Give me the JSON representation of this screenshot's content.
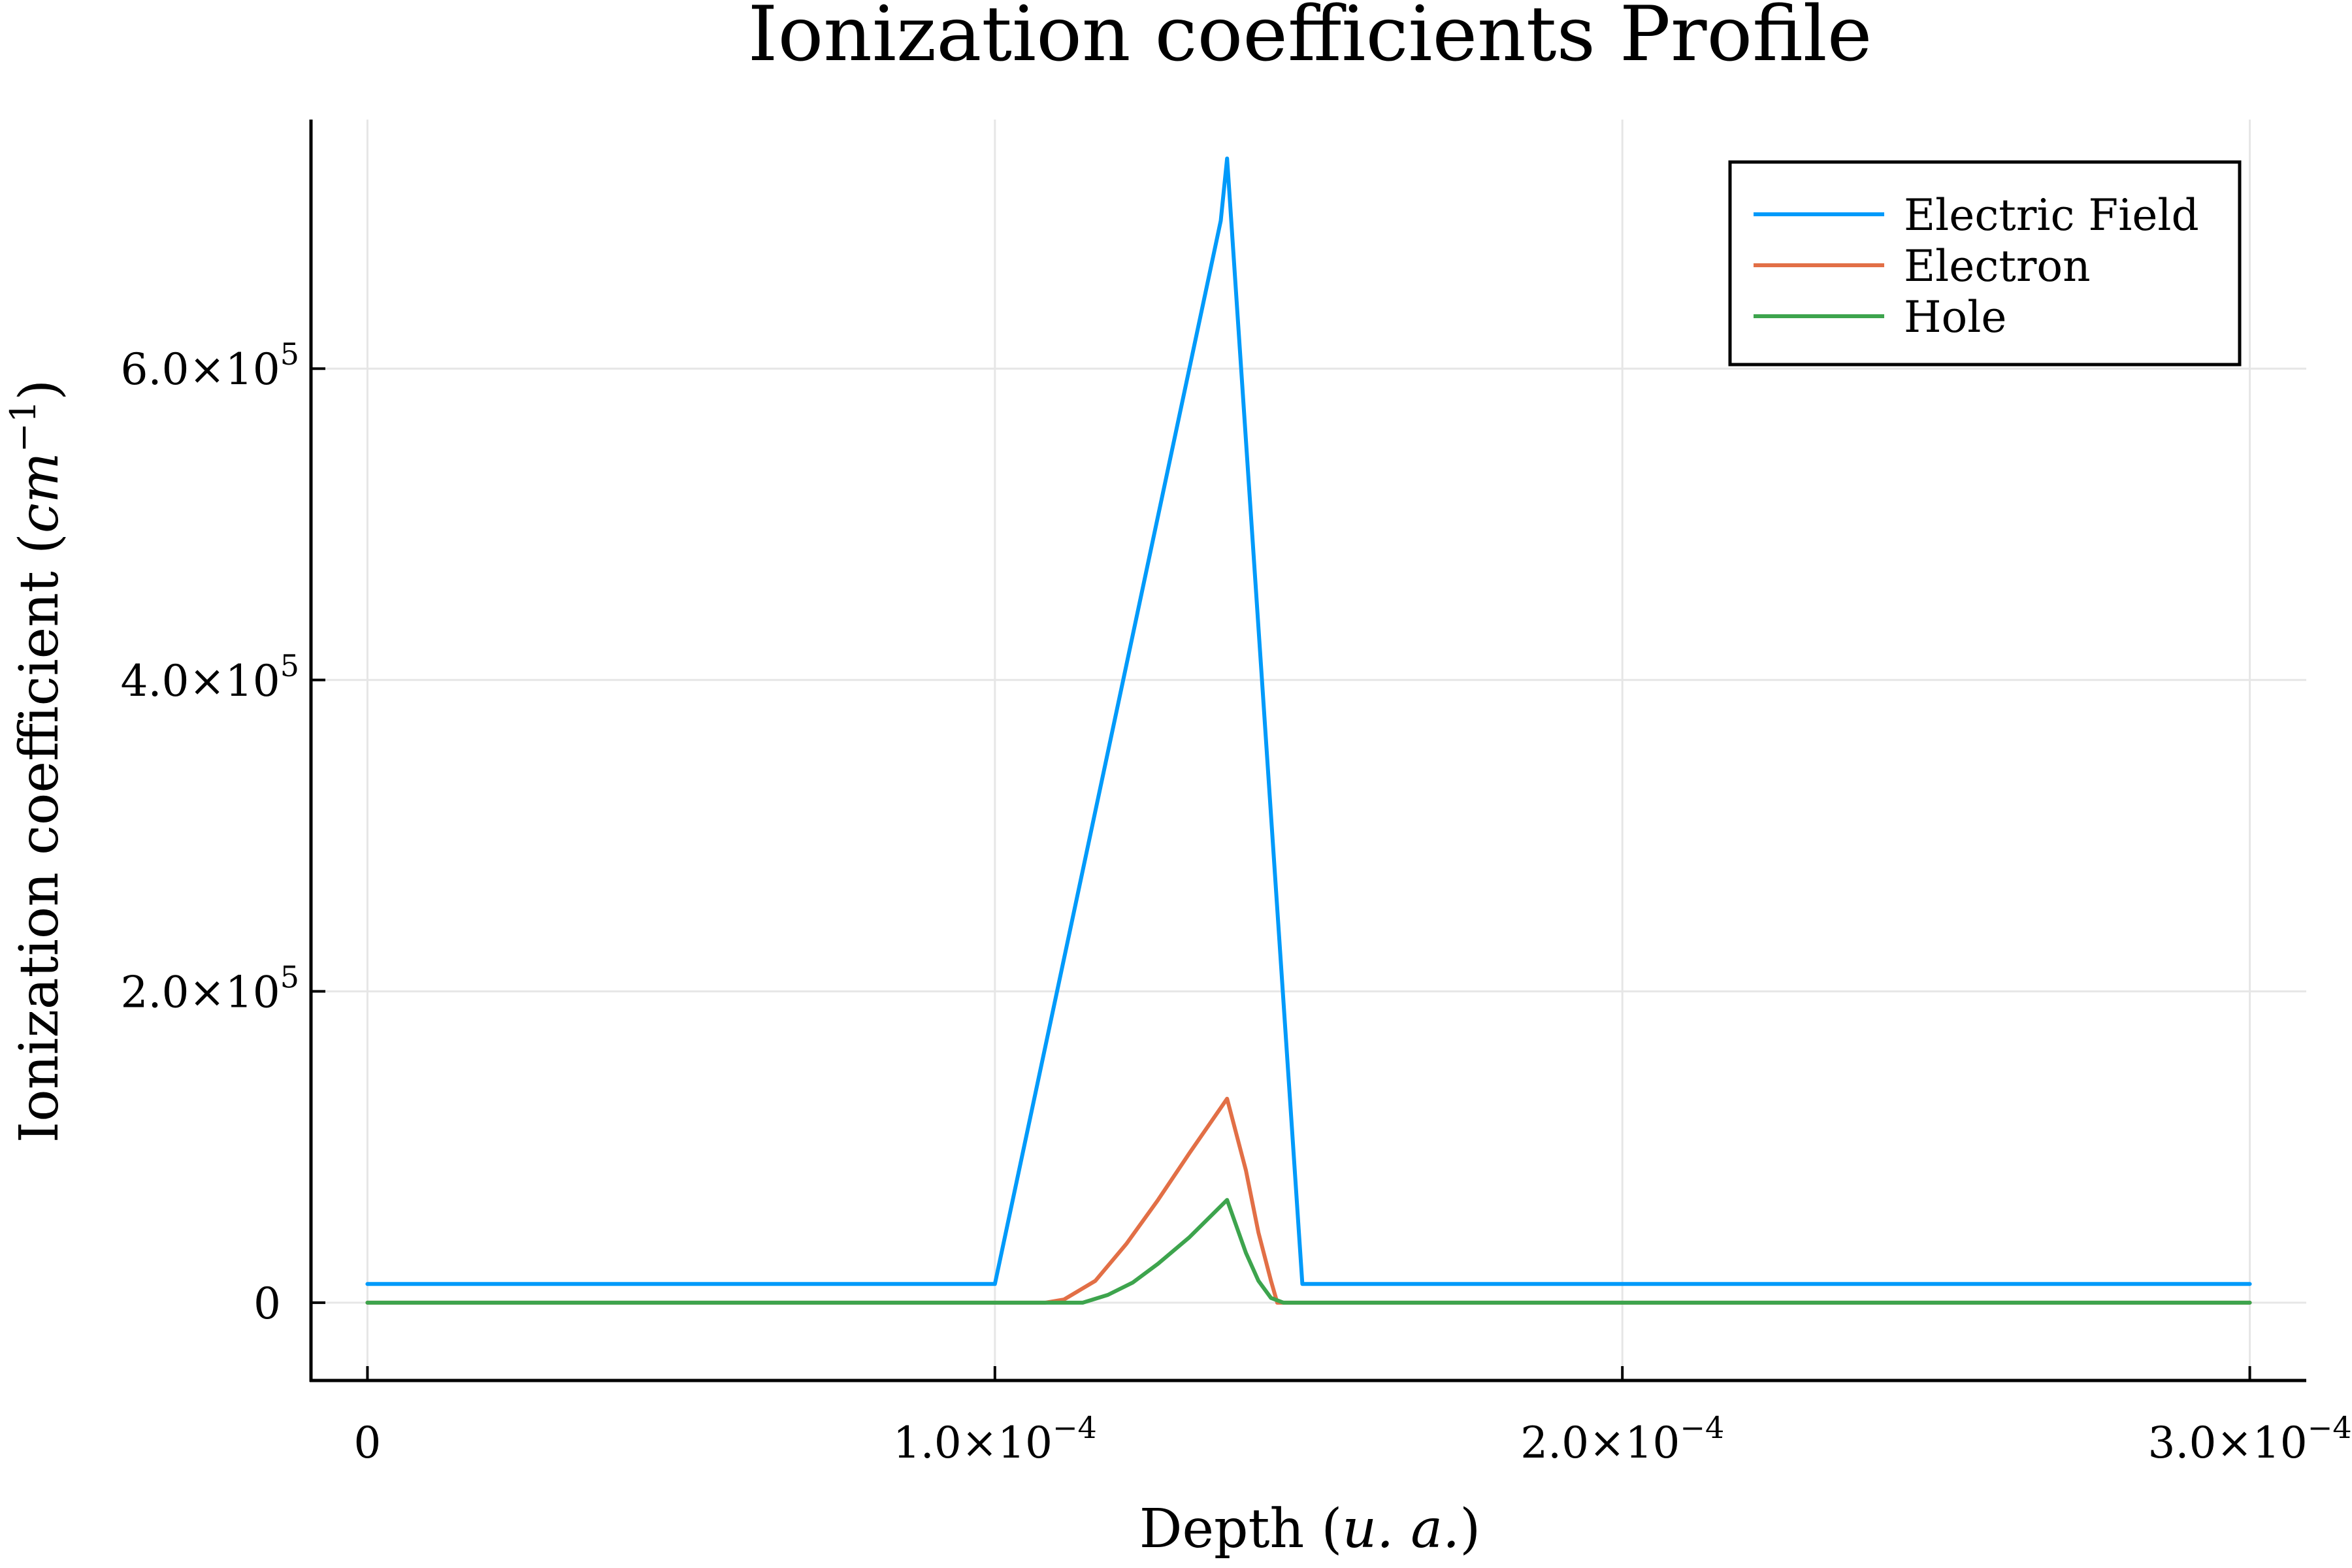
{
  "chart_data": {
    "type": "line",
    "title": "Ionization coefficients Profile",
    "xlabel": {
      "pre": "Depth (",
      "math": "u. a.",
      "post": ")"
    },
    "ylabel": {
      "pre": "Ionization coefficient (",
      "math": "cm",
      "sup": "−1",
      "post": ")"
    },
    "xlim": [
      -9e-06,
      0.000309
    ],
    "ylim": [
      -50000,
      760000
    ],
    "x_ticks": [
      {
        "value": 0,
        "mantissa": "0",
        "exp": ""
      },
      {
        "value": 0.0001,
        "mantissa": "1.0×10",
        "exp": "−4"
      },
      {
        "value": 0.0002,
        "mantissa": "2.0×10",
        "exp": "−4"
      },
      {
        "value": 0.0003,
        "mantissa": "3.0×10",
        "exp": "−4"
      }
    ],
    "y_ticks": [
      {
        "value": 0,
        "mantissa": "0",
        "exp": ""
      },
      {
        "value": 200000,
        "mantissa": "2.0×10",
        "exp": "5"
      },
      {
        "value": 400000,
        "mantissa": "4.0×10",
        "exp": "5"
      },
      {
        "value": 600000,
        "mantissa": "6.0×10",
        "exp": "5"
      }
    ],
    "grid": true,
    "legend_position": "top-right",
    "series": [
      {
        "name": "Electric Field",
        "color": "#009AFA",
        "x": [
          0,
          0.0001,
          0.000136,
          0.000137,
          0.000149,
          0.0003
        ],
        "y": [
          12000,
          12000,
          695000,
          735000,
          12000,
          12000
        ]
      },
      {
        "name": "Electron",
        "color": "#E26F46",
        "x": [
          0,
          0.000108,
          0.000111,
          0.000116,
          0.000121,
          0.000126,
          0.000131,
          0.000137,
          0.00014,
          0.000142,
          0.000144,
          0.000145,
          0.0003
        ],
        "y": [
          0,
          0,
          2000,
          14000,
          38000,
          66000,
          96000,
          131000,
          85000,
          45000,
          14000,
          0,
          0
        ]
      },
      {
        "name": "Hole",
        "color": "#3DA44D",
        "x": [
          0,
          0.000114,
          0.000118,
          0.000122,
          0.000126,
          0.000131,
          0.000137,
          0.00014,
          0.000142,
          0.000144,
          0.000146,
          0.0003
        ],
        "y": [
          0,
          0,
          5000,
          13000,
          25000,
          42000,
          66000,
          32000,
          14000,
          3000,
          0,
          0
        ]
      }
    ]
  }
}
